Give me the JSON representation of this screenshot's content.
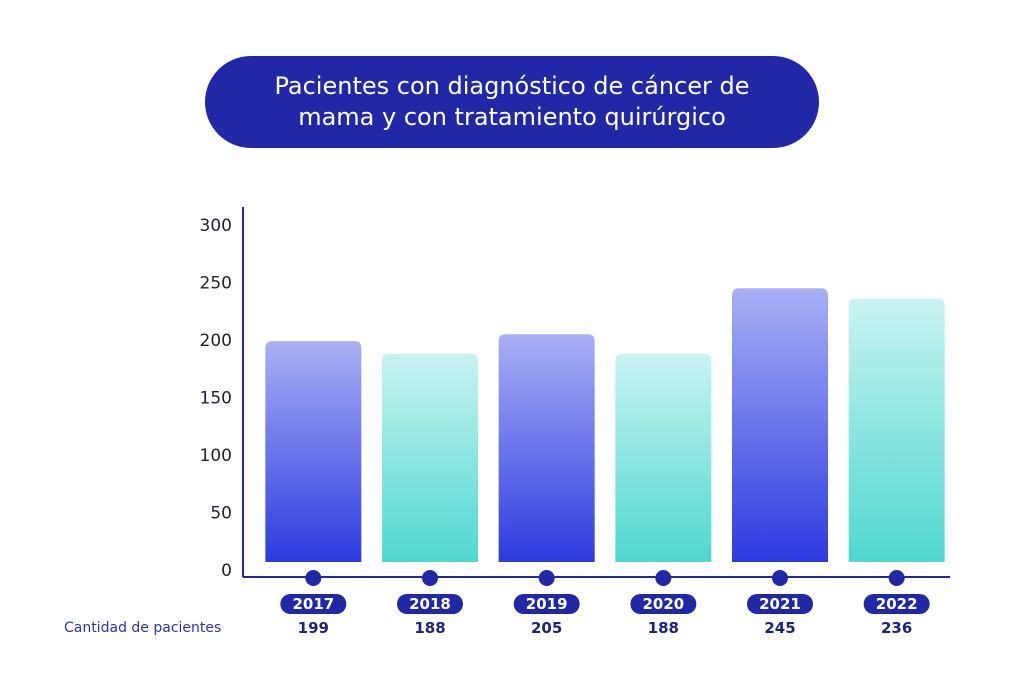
{
  "colors": {
    "title_bg": "#2028a8",
    "axis": "#2028a8",
    "purple_top": "#a9b0f5",
    "purple_bottom": "#2c3ae0",
    "teal_top": "#c9f3f1",
    "teal_bottom": "#4fd8d0",
    "pill": "#2028a8"
  },
  "row_label": "Cantidad de pacientes",
  "chart_data": {
    "type": "bar",
    "title": "Pacientes con diagnóstico de cáncer de mama y con tratamiento quirúrgico",
    "categories": [
      "2017",
      "2018",
      "2019",
      "2020",
      "2021",
      "2022"
    ],
    "values": [
      199,
      188,
      205,
      188,
      245,
      236
    ],
    "value_labels": [
      "199",
      "188",
      "205",
      "188",
      "245",
      "236"
    ],
    "bar_styles": [
      "purple",
      "teal",
      "purple",
      "teal",
      "purple",
      "teal"
    ],
    "yticks": [
      "0",
      "50",
      "100",
      "150",
      "200",
      "250",
      "300"
    ],
    "ylim": [
      0,
      300
    ],
    "grid": false,
    "legend": "none"
  }
}
